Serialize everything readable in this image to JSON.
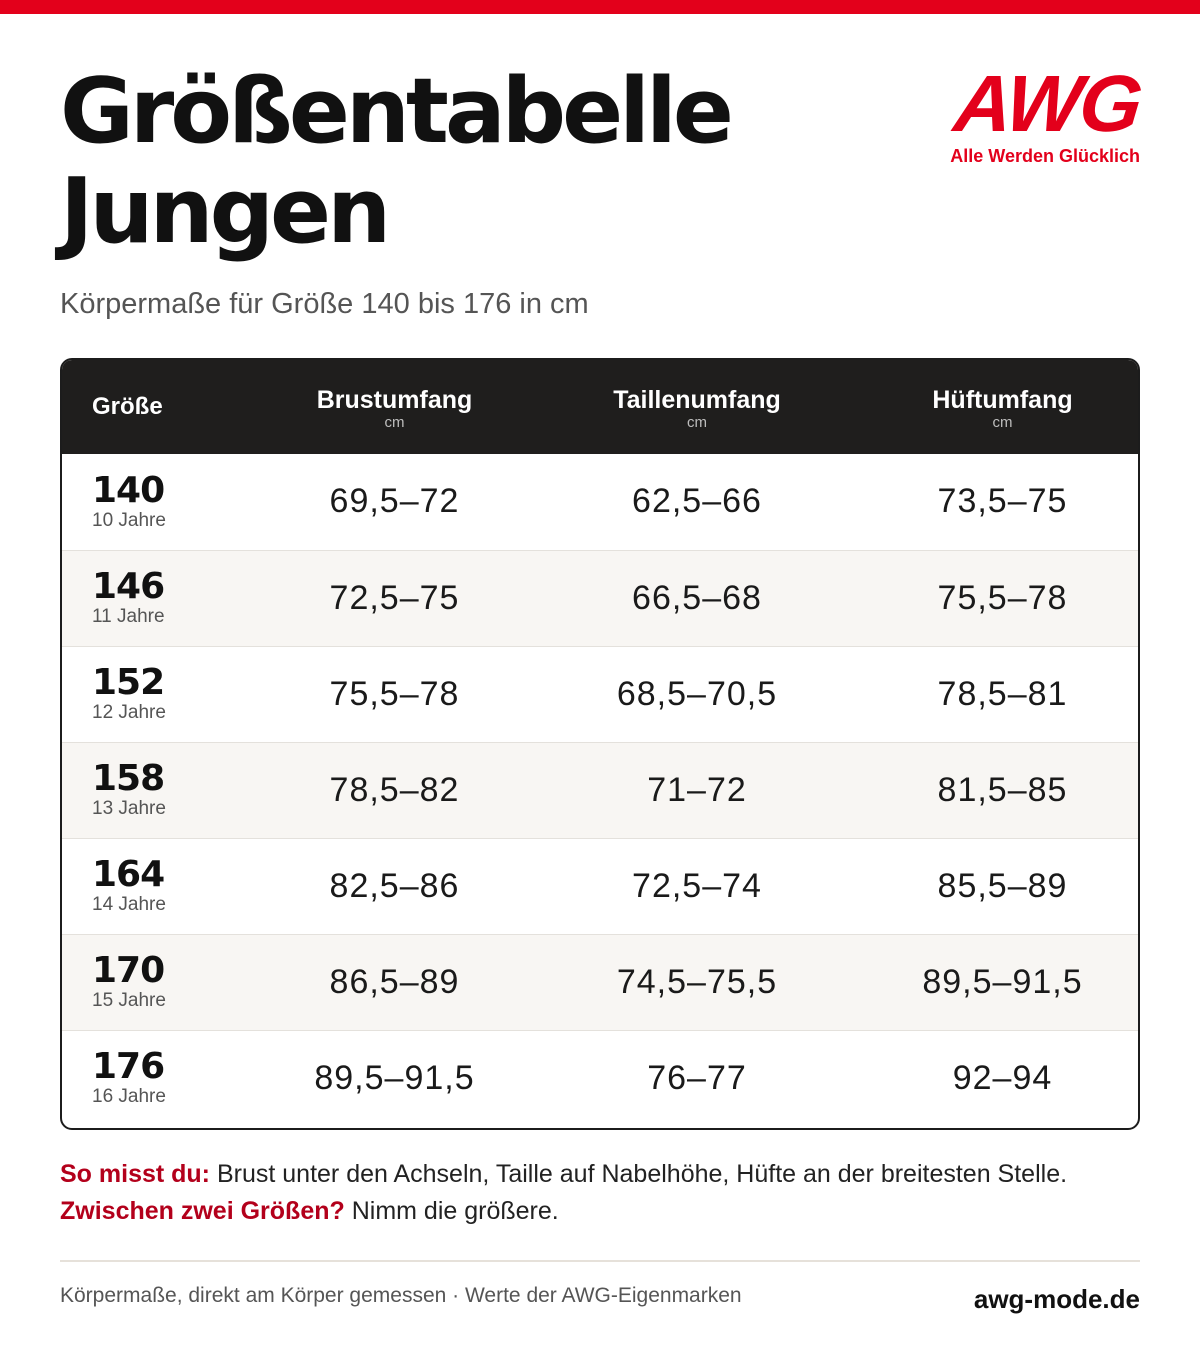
{
  "header": {
    "title_line1": "Größentabelle",
    "title_line2": "Jungen",
    "subtitle": "Körpermaße für Größe 140 bis 176 in cm"
  },
  "logo": {
    "mark": "AWG",
    "tagline": "Alle Werden Glücklich"
  },
  "table": {
    "columns": [
      {
        "label": "Größe",
        "unit": ""
      },
      {
        "label": "Brustumfang",
        "unit": "cm"
      },
      {
        "label": "Taillenumfang",
        "unit": "cm"
      },
      {
        "label": "Hüftumfang",
        "unit": "cm"
      }
    ],
    "rows": [
      {
        "size": "140",
        "age": "10 Jahre",
        "brust": "69,5–72",
        "taille": "62,5–66",
        "huefte": "73,5–75"
      },
      {
        "size": "146",
        "age": "11 Jahre",
        "brust": "72,5–75",
        "taille": "66,5–68",
        "huefte": "75,5–78"
      },
      {
        "size": "152",
        "age": "12 Jahre",
        "brust": "75,5–78",
        "taille": "68,5–70,5",
        "huefte": "78,5–81"
      },
      {
        "size": "158",
        "age": "13 Jahre",
        "brust": "78,5–82",
        "taille": "71–72",
        "huefte": "81,5–85"
      },
      {
        "size": "164",
        "age": "14 Jahre",
        "brust": "82,5–86",
        "taille": "72,5–74",
        "huefte": "85,5–89"
      },
      {
        "size": "170",
        "age": "15 Jahre",
        "brust": "86,5–89",
        "taille": "74,5–75,5",
        "huefte": "89,5–91,5"
      },
      {
        "size": "176",
        "age": "16 Jahre",
        "brust": "89,5–91,5",
        "taille": "76–77",
        "huefte": "92–94"
      }
    ]
  },
  "notes": {
    "measure_label": "So misst du:",
    "measure_text": "Brust unter den Achseln, Taille auf Nabelhöhe, Hüfte an der breitesten Stelle.",
    "between_label": "Zwischen zwei Größen?",
    "between_text": "Nimm die größere."
  },
  "footer": {
    "left": "Körpermaße, direkt am Körper gemessen · Werte der AWG-Eigenmarken",
    "right": "awg-mode.de"
  },
  "colors": {
    "brand_red": "#e3001b",
    "note_label_red": "#b3001b",
    "header_bg": "#1f1e1d",
    "row_alt_bg": "#f8f6f3"
  }
}
